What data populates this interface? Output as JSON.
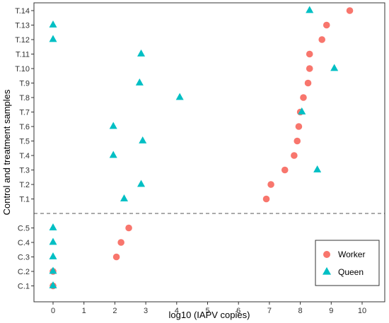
{
  "chart_data": {
    "type": "scatter",
    "title": "",
    "xlabel": "log10 (IAPV copies)",
    "ylabel": "Control and treatment samples",
    "xlim": [
      -0.6,
      10.85
    ],
    "x_ticks": [
      0,
      1,
      2,
      3,
      4,
      5,
      6,
      7,
      8,
      9,
      10
    ],
    "categories": [
      "C.1",
      "C.2",
      "C.3",
      "C.4",
      "C.5",
      "T.1",
      "T.2",
      "T.3",
      "T.4",
      "T.5",
      "T.6",
      "T.7",
      "T.8",
      "T.9",
      "T.10",
      "T.11",
      "T.12",
      "T.13",
      "T.14"
    ],
    "separator": {
      "between": [
        "C.5",
        "T.1"
      ],
      "style": "dashed"
    },
    "grid": false,
    "legend_position": "bottom-right",
    "series": [
      {
        "name": "Worker",
        "marker": "circle",
        "color": "#F8766D",
        "points": [
          [
            "C.1",
            0
          ],
          [
            "C.2",
            0
          ],
          [
            "C.3",
            2.05
          ],
          [
            "C.4",
            2.2
          ],
          [
            "C.5",
            2.45
          ],
          [
            "T.1",
            6.9
          ],
          [
            "T.2",
            7.05
          ],
          [
            "T.3",
            7.5
          ],
          [
            "T.4",
            7.8
          ],
          [
            "T.5",
            7.9
          ],
          [
            "T.6",
            7.95
          ],
          [
            "T.7",
            8.0
          ],
          [
            "T.8",
            8.1
          ],
          [
            "T.9",
            8.25
          ],
          [
            "T.10",
            8.3
          ],
          [
            "T.11",
            8.3
          ],
          [
            "T.12",
            8.7
          ],
          [
            "T.13",
            8.85
          ],
          [
            "T.14",
            9.6
          ]
        ]
      },
      {
        "name": "Queen",
        "marker": "triangle",
        "color": "#00BFC4",
        "points": [
          [
            "C.1",
            0
          ],
          [
            "C.2",
            0
          ],
          [
            "C.3",
            0
          ],
          [
            "C.4",
            0
          ],
          [
            "C.5",
            0
          ],
          [
            "T.1",
            2.3
          ],
          [
            "T.2",
            2.85
          ],
          [
            "T.3",
            8.55
          ],
          [
            "T.4",
            1.95
          ],
          [
            "T.5",
            2.9
          ],
          [
            "T.6",
            1.95
          ],
          [
            "T.7",
            8.05
          ],
          [
            "T.8",
            4.1
          ],
          [
            "T.9",
            2.8
          ],
          [
            "T.10",
            9.1
          ],
          [
            "T.11",
            2.85
          ],
          [
            "T.12",
            0
          ],
          [
            "T.13",
            0
          ],
          [
            "T.14",
            8.3
          ]
        ]
      }
    ]
  }
}
